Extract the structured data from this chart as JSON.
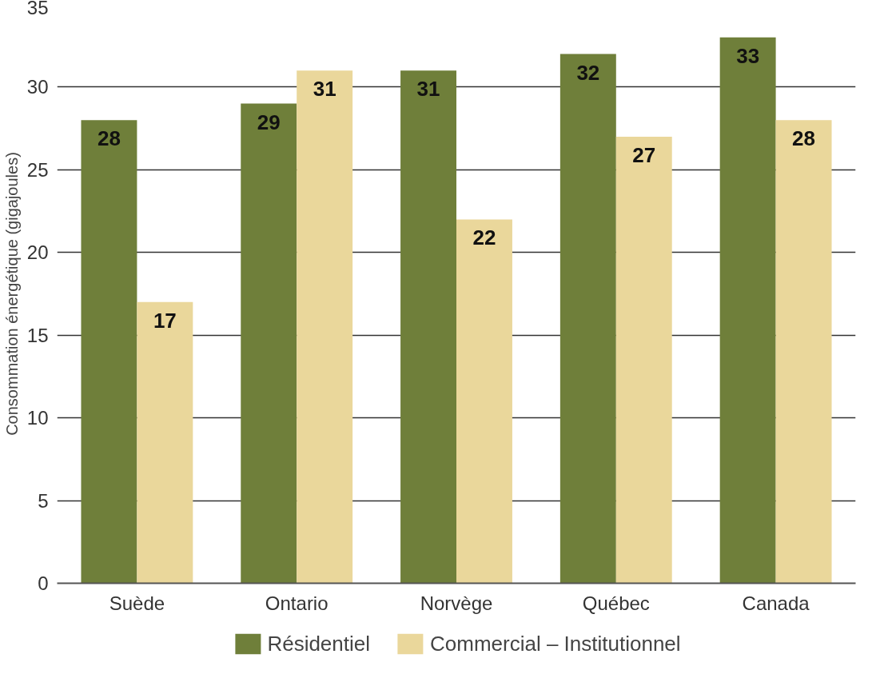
{
  "chart_data": {
    "type": "bar",
    "ylabel": "Consommation énergétique (gigajoules)",
    "categories": [
      "Suède",
      "Ontario",
      "Norvège",
      "Québec",
      "Canada"
    ],
    "series": [
      {
        "name": "Résidentiel",
        "color": "#6f7f3a",
        "values": [
          28,
          29,
          31,
          32,
          33
        ]
      },
      {
        "name": "Commercial – Institutionnel",
        "color": "#ead79b",
        "values": [
          17,
          31,
          22,
          27,
          28
        ]
      }
    ],
    "ylim": [
      0,
      35
    ],
    "yticks": [
      0,
      5,
      10,
      15,
      20,
      25,
      30,
      35
    ],
    "grid": "y",
    "legend": "bottom",
    "data_labels": true
  }
}
